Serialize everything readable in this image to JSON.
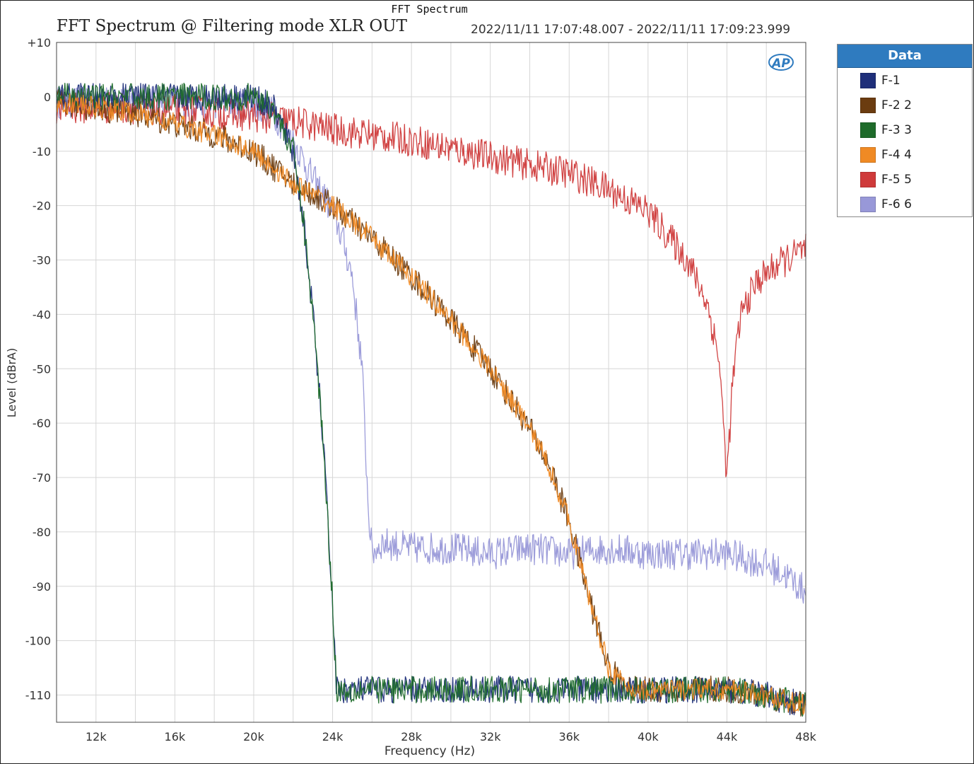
{
  "window_title": "FFT Spectrum",
  "plot_title": "FFT Spectrum @ Filtering mode XLR OUT",
  "timestamp": "2022/11/11 17:07:48.007 - 2022/11/11 17:09:23.999",
  "legend": {
    "header": "Data",
    "items": [
      {
        "label": "F-1",
        "color": "#1f2f7a"
      },
      {
        "label": "F-2 2",
        "color": "#6b3c10"
      },
      {
        "label": "F-3 3",
        "color": "#1e6b2a"
      },
      {
        "label": "F-4 4",
        "color": "#f08a24"
      },
      {
        "label": "F-5 5",
        "color": "#cf3a3a"
      },
      {
        "label": "F-6 6",
        "color": "#9898d8"
      }
    ]
  },
  "ap_logo": "AP",
  "chart_data": {
    "type": "line",
    "xlabel": "Frequency (Hz)",
    "ylabel": "Level (dBrA)",
    "xlim": [
      10000,
      48000
    ],
    "ylim": [
      -115,
      10
    ],
    "x_ticks": [
      12000,
      16000,
      20000,
      24000,
      28000,
      32000,
      36000,
      40000,
      44000,
      48000
    ],
    "x_tick_labels": [
      "12k",
      "16k",
      "20k",
      "24k",
      "28k",
      "32k",
      "36k",
      "40k",
      "44k",
      "48k"
    ],
    "y_ticks": [
      10,
      0,
      -10,
      -20,
      -30,
      -40,
      -50,
      -60,
      -70,
      -80,
      -90,
      -100,
      -110
    ],
    "y_tick_labels": [
      "+10",
      "0",
      "-10",
      "-20",
      "-30",
      "-40",
      "-50",
      "-60",
      "-70",
      "-80",
      "-90",
      "-100",
      "-110"
    ],
    "grid": true,
    "series": [
      {
        "name": "F-6 6",
        "color": "#9898d8",
        "noise": 3,
        "x": [
          10000,
          14000,
          18000,
          20000,
          21000,
          22000,
          23000,
          24000,
          24500,
          25000,
          25500,
          25800,
          26000,
          26500,
          28000,
          30000,
          32000,
          34000,
          36000,
          38000,
          40000,
          42000,
          44000,
          46000,
          47000,
          48000
        ],
        "y": [
          -1,
          -1,
          -1,
          -1.5,
          -3,
          -8,
          -15,
          -21,
          -26,
          -33,
          -50,
          -75,
          -84,
          -82,
          -83,
          -83,
          -84,
          -83,
          -84,
          -83,
          -84,
          -84,
          -84,
          -86,
          -88,
          -91
        ]
      },
      {
        "name": "F-5 5",
        "color": "#cf3a3a",
        "noise": 3,
        "x": [
          10000,
          14000,
          18000,
          20000,
          22000,
          24000,
          26000,
          28000,
          30000,
          32000,
          34000,
          36000,
          38000,
          40000,
          42000,
          43000,
          43600,
          44000,
          44300,
          44700,
          45500,
          46500,
          47500,
          48000
        ],
        "y": [
          -2,
          -2,
          -3,
          -3.5,
          -4.5,
          -6,
          -7,
          -8,
          -9.5,
          -11,
          -12.5,
          -14,
          -17,
          -21,
          -30,
          -38,
          -48,
          -70,
          -52,
          -40,
          -34,
          -31,
          -29,
          -28
        ]
      },
      {
        "name": "F-2 2",
        "color": "#6b3c10",
        "noise": 2.5,
        "x": [
          10000,
          12000,
          14000,
          16000,
          18000,
          20000,
          22000,
          24000,
          26000,
          28000,
          30000,
          32000,
          34000,
          35000,
          36000,
          37000,
          38000,
          39000,
          40000,
          42000,
          44000,
          46000,
          48000
        ],
        "y": [
          -1,
          -2,
          -3,
          -5,
          -7,
          -10,
          -16,
          -20,
          -26,
          -33,
          -41,
          -50,
          -61,
          -68,
          -78,
          -92,
          -105,
          -109,
          -109,
          -109,
          -109,
          -110,
          -112
        ]
      },
      {
        "name": "F-1",
        "color": "#1f2f7a",
        "noise": 2.5,
        "x": [
          10000,
          14000,
          18000,
          20000,
          21000,
          22000,
          22500,
          23000,
          23500,
          24000,
          24200,
          26000,
          30000,
          34000,
          38000,
          40000,
          42000,
          44000,
          46000,
          48000
        ],
        "y": [
          0,
          0,
          0,
          0,
          -2,
          -10,
          -22,
          -40,
          -62,
          -93,
          -109,
          -109,
          -109,
          -109,
          -109,
          -109,
          -109,
          -109,
          -110,
          -112
        ]
      },
      {
        "name": "F-3 3",
        "color": "#1e6b2a",
        "noise": 2.5,
        "x": [
          10000,
          14000,
          18000,
          20000,
          21000,
          22000,
          22500,
          23000,
          23500,
          24000,
          24200,
          26000,
          30000,
          34000,
          38000,
          40000,
          42000,
          44000,
          46000,
          48000
        ],
        "y": [
          0,
          0,
          0,
          0,
          -2,
          -10,
          -22,
          -40,
          -62,
          -93,
          -109,
          -109,
          -109,
          -109,
          -109,
          -109,
          -109,
          -109,
          -110,
          -112
        ]
      },
      {
        "name": "F-4 4",
        "color": "#f08a24",
        "noise": 2,
        "x": [
          10000,
          12000,
          14000,
          16000,
          18000,
          20000,
          22000,
          24000,
          26000,
          28000,
          30000,
          32000,
          34000,
          35000,
          36000,
          37000,
          38000,
          39000,
          40000,
          42000,
          44000,
          46000,
          48000
        ],
        "y": [
          -1,
          -2,
          -3,
          -5,
          -7,
          -10,
          -16,
          -20,
          -26,
          -33,
          -41,
          -50,
          -61,
          -68,
          -78,
          -92,
          -105,
          -109,
          -109,
          -109,
          -109,
          -110,
          -112
        ]
      }
    ]
  }
}
